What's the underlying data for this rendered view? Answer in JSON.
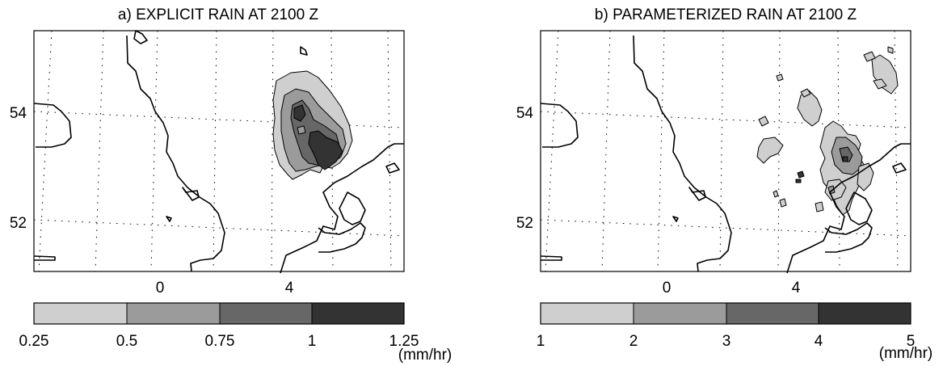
{
  "panels": [
    {
      "title": "a) EXPLICIT RAIN AT 2100 Z",
      "y_ticks": [
        "54",
        "52"
      ],
      "x_ticks": [
        "0",
        "4"
      ],
      "colorbar": {
        "labels": [
          "0.25",
          "0.5",
          "0.75",
          "1",
          "1.25"
        ],
        "unit": "(mm/hr)",
        "colors": [
          "#cfcfcf",
          "#9b9b9b",
          "#676767",
          "#333333"
        ]
      }
    },
    {
      "title": "b) PARAMETERIZED RAIN AT 2100 Z",
      "y_ticks": [
        "54",
        "52"
      ],
      "x_ticks": [
        "0",
        "4"
      ],
      "colorbar": {
        "labels": [
          "1",
          "2",
          "3",
          "4",
          "5"
        ],
        "unit": "(mm/hr)",
        "colors": [
          "#cfcfcf",
          "#9b9b9b",
          "#676767",
          "#333333"
        ]
      }
    }
  ]
}
